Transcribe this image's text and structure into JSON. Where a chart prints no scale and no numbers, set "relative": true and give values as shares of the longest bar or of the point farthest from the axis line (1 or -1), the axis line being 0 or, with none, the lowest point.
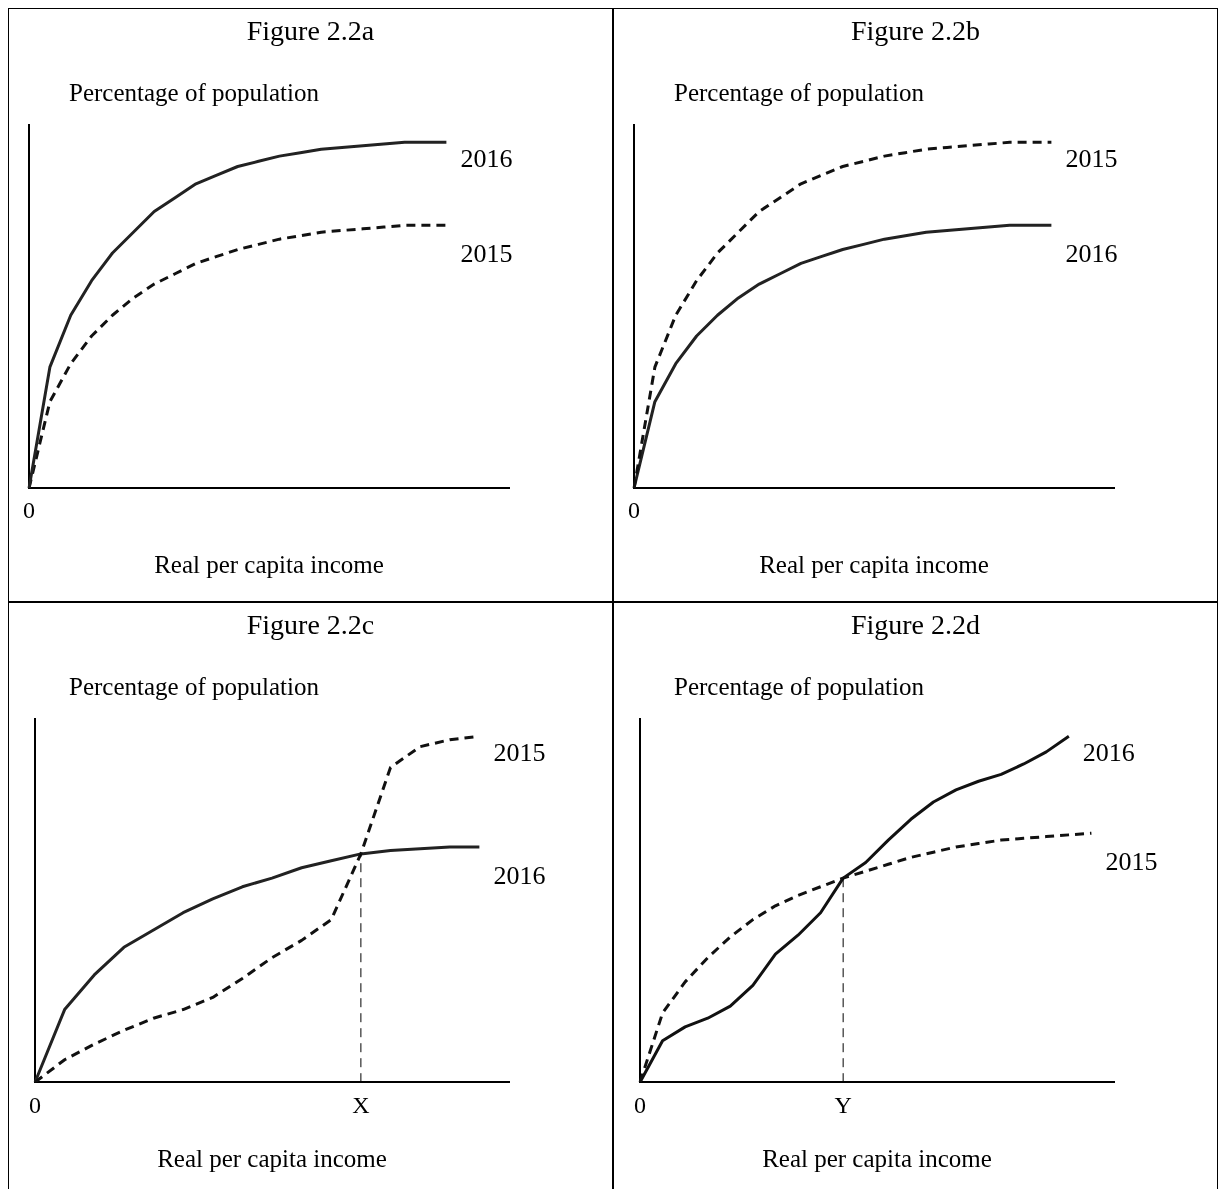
{
  "chart_data": [
    {
      "type": "line",
      "title": "Figure 2.2a",
      "ylabel": "Percentage of population",
      "xlabel": "Real per capita income",
      "relative": true,
      "grid": false,
      "legend": false,
      "annotations": [
        "0"
      ],
      "categories": [
        null,
        null,
        null,
        null,
        null,
        null,
        null,
        null,
        null,
        null,
        null,
        null,
        null,
        null,
        null,
        null,
        null,
        null,
        null,
        null,
        null,
        null,
        null,
        null
      ],
      "series": [
        {
          "name": "2016",
          "color": "#222222",
          "line_style": "solid",
          "values": [
            0,
            0.35,
            0.5,
            0.6,
            0.68,
            0.74,
            0.8,
            0.84,
            0.88,
            0.905,
            0.93,
            0.945,
            0.96,
            0.97,
            0.98,
            0.985,
            0.99,
            0.995,
            1,
            1,
            1,
            null,
            null,
            null
          ]
        },
        {
          "name": "2015",
          "color": "#111111",
          "line_style": "dashed",
          "values": [
            0,
            0.25,
            0.36,
            0.44,
            0.5,
            0.55,
            0.59,
            0.62,
            0.65,
            0.67,
            0.69,
            0.705,
            0.72,
            0.73,
            0.74,
            0.745,
            0.75,
            0.755,
            0.76,
            0.76,
            0.76,
            null,
            null,
            null
          ]
        }
      ]
    },
    {
      "type": "line",
      "title": "Figure 2.2b",
      "ylabel": "Percentage of population",
      "xlabel": "Real per capita income",
      "relative": true,
      "grid": false,
      "legend": false,
      "annotations": [
        "0"
      ],
      "categories": [
        null,
        null,
        null,
        null,
        null,
        null,
        null,
        null,
        null,
        null,
        null,
        null,
        null,
        null,
        null,
        null,
        null,
        null,
        null,
        null,
        null,
        null,
        null,
        null
      ],
      "series": [
        {
          "name": "2015",
          "color": "#111111",
          "line_style": "dashed",
          "values": [
            0,
            0.35,
            0.5,
            0.6,
            0.68,
            0.74,
            0.8,
            0.84,
            0.88,
            0.905,
            0.93,
            0.945,
            0.96,
            0.97,
            0.98,
            0.985,
            0.99,
            0.995,
            1,
            1,
            1,
            null,
            null,
            null
          ]
        },
        {
          "name": "2016",
          "color": "#222222",
          "line_style": "solid",
          "values": [
            0,
            0.25,
            0.36,
            0.44,
            0.5,
            0.55,
            0.59,
            0.62,
            0.65,
            0.67,
            0.69,
            0.705,
            0.72,
            0.73,
            0.74,
            0.745,
            0.75,
            0.755,
            0.76,
            0.76,
            0.76,
            null,
            null,
            null
          ]
        }
      ]
    },
    {
      "type": "line",
      "title": "Figure 2.2c",
      "ylabel": "Percentage of population",
      "xlabel": "Real per capita income",
      "relative": true,
      "grid": false,
      "legend": false,
      "categories": [
        "0",
        null,
        null,
        null,
        null,
        null,
        null,
        null,
        null,
        null,
        null,
        "X",
        null,
        null,
        null,
        null,
        null
      ],
      "ref_lines": [
        {
          "axis": "x",
          "value": "X",
          "line_style": "dashed"
        }
      ],
      "series": [
        {
          "name": "2015",
          "color": "#111111",
          "line_style": "dashed",
          "values": [
            0,
            0.065,
            0.11,
            0.15,
            0.185,
            0.21,
            0.245,
            0.3,
            0.36,
            0.41,
            0.47,
            0.66,
            0.91,
            0.97,
            0.99,
            1,
            null
          ]
        },
        {
          "name": "2016",
          "color": "#222222",
          "line_style": "solid",
          "values": [
            0,
            0.21,
            0.31,
            0.39,
            0.44,
            0.49,
            0.53,
            0.565,
            0.59,
            0.62,
            0.64,
            0.66,
            0.67,
            0.675,
            0.68,
            0.68,
            null
          ]
        }
      ]
    },
    {
      "type": "line",
      "title": "Figure 2.2d",
      "ylabel": "Percentage of population",
      "xlabel": "Real per capita income",
      "relative": true,
      "grid": false,
      "legend": false,
      "categories": [
        "0",
        null,
        null,
        null,
        null,
        null,
        null,
        null,
        null,
        "Y",
        null,
        null,
        null,
        null,
        null,
        null,
        null,
        null,
        null,
        null,
        null,
        null
      ],
      "ref_lines": [
        {
          "axis": "x",
          "value": "Y",
          "line_style": "dashed"
        }
      ],
      "series": [
        {
          "name": "2016",
          "color": "#111111",
          "line_style": "solid",
          "values": [
            0,
            0.12,
            0.16,
            0.185,
            0.22,
            0.28,
            0.37,
            0.425,
            0.49,
            0.59,
            0.635,
            0.7,
            0.76,
            0.81,
            0.845,
            0.87,
            0.89,
            0.92,
            0.955,
            1,
            null,
            null
          ]
        },
        {
          "name": "2015",
          "color": "#111111",
          "line_style": "dashed",
          "values": [
            0,
            0.2,
            0.29,
            0.36,
            0.42,
            0.47,
            0.51,
            0.54,
            0.565,
            0.59,
            0.61,
            0.63,
            0.65,
            0.665,
            0.68,
            0.69,
            0.7,
            0.705,
            0.71,
            0.715,
            0.72,
            null
          ]
        }
      ]
    }
  ]
}
